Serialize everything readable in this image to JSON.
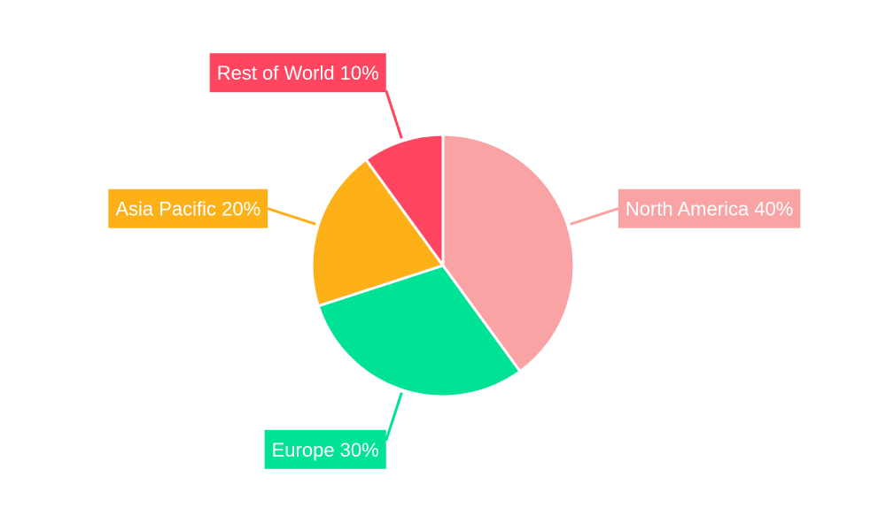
{
  "chart_data": {
    "type": "pie",
    "title": "",
    "start_angle": "top, clockwise",
    "slices": [
      {
        "label": "North America",
        "value": 40,
        "text": "North America 40%",
        "color": "#f9a3a4"
      },
      {
        "label": "Europe",
        "value": 30,
        "text": "Europe 30%",
        "color": "#00e396"
      },
      {
        "label": "Asia Pacific",
        "value": 20,
        "text": "Asia Pacific 20%",
        "color": "#feb019"
      },
      {
        "label": "Rest of World",
        "value": 10,
        "text": "Rest of World 10%",
        "color": "#ff4560"
      }
    ]
  }
}
